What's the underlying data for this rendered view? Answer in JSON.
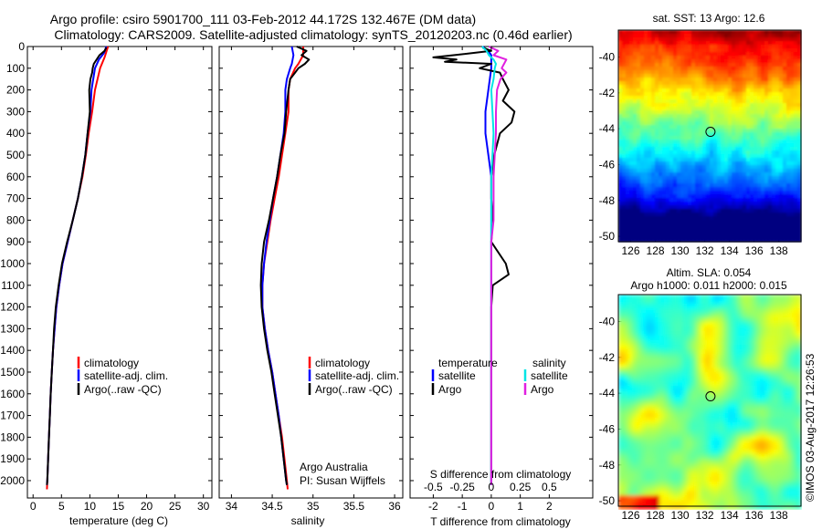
{
  "title": {
    "line1": "Argo profile: csiro 5901700_111 03-Feb-2012 44.172S 132.467E (DM data)",
    "line2": "Climatology: CARS2009. Satellite-adjusted climatology: synTS_20120203.nc (0.46d earlier)"
  },
  "colors": {
    "climatology": "#ff0000",
    "satellite": "#0000ff",
    "argo": "#000000",
    "satellite_salinity": "#00e5e5",
    "argo_salinity": "#e020e0",
    "marker": "#000000"
  },
  "chart_data": [
    {
      "type": "line",
      "panel": "temperature",
      "xlabel": "temperature (deg C)",
      "ylabel": "",
      "xlim": [
        -1,
        31.5
      ],
      "ylim": [
        2080,
        0
      ],
      "y_inverted": true,
      "xticks": [
        "0",
        "5",
        "10",
        "15",
        "20",
        "25",
        "30"
      ],
      "xtick_values": [
        0,
        5,
        10,
        15,
        20,
        25,
        30
      ],
      "yticks": [
        "0",
        "100",
        "200",
        "300",
        "400",
        "500",
        "600",
        "700",
        "800",
        "900",
        "1000",
        "1100",
        "1200",
        "1300",
        "1400",
        "1500",
        "1600",
        "1700",
        "1800",
        "1900",
        "2000"
      ],
      "ytick_values": [
        0,
        100,
        200,
        300,
        400,
        500,
        600,
        700,
        800,
        900,
        1000,
        1100,
        1200,
        1300,
        1400,
        1500,
        1600,
        1700,
        1800,
        1900,
        2000
      ],
      "legend": {
        "position": "middle",
        "entries": [
          "climatology",
          "satellite-adj. clim.",
          "Argo(..raw -QC)"
        ]
      },
      "series": [
        {
          "name": "climatology",
          "color": "#ff0000",
          "y": [
            0,
            50,
            100,
            200,
            300,
            400,
            500,
            600,
            700,
            800,
            900,
            1000,
            1100,
            1200,
            1300,
            1400,
            1500,
            1600,
            1700,
            1800,
            1900,
            2000,
            2040
          ],
          "x": [
            13.2,
            12.6,
            11.8,
            10.9,
            10.4,
            9.8,
            9.3,
            8.7,
            7.9,
            7.0,
            6.1,
            5.2,
            4.6,
            4.1,
            3.8,
            3.5,
            3.3,
            3.1,
            2.95,
            2.8,
            2.65,
            2.5,
            2.45
          ]
        },
        {
          "name": "satellite-adj. clim.",
          "color": "#0000ff",
          "y": [
            0,
            30,
            60,
            100,
            200,
            300,
            400,
            500,
            600,
            700,
            800,
            900,
            1000,
            1100,
            1200,
            1300,
            1400,
            1500,
            1600,
            1700,
            1800,
            1900,
            2000,
            2020
          ],
          "x": [
            12.9,
            12.5,
            11.6,
            10.9,
            10.3,
            10.1,
            9.6,
            9.2,
            8.6,
            7.9,
            7.0,
            6.1,
            5.2,
            4.6,
            4.1,
            3.8,
            3.5,
            3.3,
            3.1,
            2.95,
            2.8,
            2.65,
            2.5,
            2.45
          ]
        },
        {
          "name": "Argo(..raw -QC)",
          "color": "#000000",
          "y": [
            5,
            20,
            40,
            60,
            80,
            100,
            120,
            150,
            200,
            300,
            400,
            500,
            600,
            700,
            800,
            900,
            1000,
            1100,
            1200,
            1300,
            1400,
            1500,
            1600,
            1700,
            1800,
            1900,
            2000,
            2020
          ],
          "x": [
            12.9,
            12.6,
            11.7,
            11.2,
            10.7,
            10.5,
            10.4,
            10.1,
            9.9,
            10.0,
            9.6,
            9.2,
            8.6,
            7.9,
            7.0,
            6.0,
            5.1,
            4.5,
            4.0,
            3.7,
            3.5,
            3.3,
            3.1,
            2.95,
            2.8,
            2.65,
            2.5,
            2.45
          ]
        }
      ]
    },
    {
      "type": "line",
      "panel": "salinity",
      "xlabel": "salinity",
      "ylabel": "",
      "xlim": [
        33.85,
        36.1
      ],
      "ylim": [
        2080,
        0
      ],
      "y_inverted": true,
      "xticks": [
        "34",
        "34.5",
        "35",
        "35.5",
        "36"
      ],
      "xtick_values": [
        34,
        34.5,
        35,
        35.5,
        36
      ],
      "legend": {
        "position": "middle",
        "entries": [
          "climatology",
          "satellite-adj. clim.",
          "Argo(..raw -QC)"
        ]
      },
      "annotation": [
        "Argo Australia",
        "PI: Susan Wijffels"
      ],
      "series": [
        {
          "name": "climatology",
          "color": "#ff0000",
          "y": [
            0,
            40,
            80,
            100,
            150,
            200,
            300,
            400,
            500,
            600,
            700,
            800,
            900,
            1000,
            1100,
            1200,
            1300,
            1400,
            1500,
            1600,
            1700,
            1800,
            1900,
            2000,
            2040
          ],
          "x": [
            34.88,
            34.88,
            34.82,
            34.78,
            34.72,
            34.7,
            34.7,
            34.66,
            34.62,
            34.58,
            34.53,
            34.48,
            34.44,
            34.4,
            34.38,
            34.38,
            34.41,
            34.45,
            34.5,
            34.54,
            34.58,
            34.62,
            34.65,
            34.68,
            34.69
          ]
        },
        {
          "name": "satellite-adj. clim.",
          "color": "#0000ff",
          "y": [
            0,
            40,
            80,
            100,
            150,
            200,
            300,
            400,
            500,
            600,
            700,
            800,
            900,
            1000,
            1100,
            1200,
            1300,
            1400,
            1500,
            1600,
            1700,
            1800,
            1900,
            2000,
            2020
          ],
          "x": [
            34.74,
            34.76,
            34.74,
            34.72,
            34.68,
            34.66,
            34.66,
            34.64,
            34.6,
            34.56,
            34.51,
            34.47,
            34.43,
            34.4,
            34.38,
            34.38,
            34.41,
            34.45,
            34.5,
            34.54,
            34.58,
            34.61,
            34.64,
            34.67,
            34.68
          ]
        },
        {
          "name": "Argo(..raw -QC)",
          "color": "#000000",
          "y": [
            0,
            20,
            40,
            60,
            80,
            100,
            120,
            150,
            200,
            300,
            400,
            500,
            600,
            700,
            800,
            900,
            1000,
            1100,
            1200,
            1300,
            1400,
            1500,
            1600,
            1700,
            1800,
            1900,
            2000,
            2020
          ],
          "x": [
            34.8,
            34.92,
            34.86,
            34.95,
            34.9,
            34.82,
            34.78,
            34.72,
            34.7,
            34.67,
            34.65,
            34.6,
            34.56,
            34.51,
            34.46,
            34.4,
            34.37,
            34.36,
            34.37,
            34.4,
            34.44,
            34.49,
            34.53,
            34.57,
            34.61,
            34.64,
            34.67,
            34.68
          ]
        }
      ]
    },
    {
      "type": "line",
      "panel": "difference",
      "xlabel": "T difference from climatology",
      "xlabel_top": "S difference from climatology",
      "ylabel": "",
      "xlim": [
        -2.8,
        3.5
      ],
      "ylim": [
        2080,
        0
      ],
      "y_inverted": true,
      "xticks": [
        "-2",
        "-1",
        "0",
        "1",
        "2"
      ],
      "xtick_values": [
        -2,
        -1,
        0,
        1,
        2
      ],
      "s_xticks": [
        "-0.5",
        "-0.25",
        "0",
        "0.25",
        "0.5"
      ],
      "s_xtick_values": [
        -0.5,
        -0.25,
        0,
        0.25,
        0.5
      ],
      "legend": {
        "position": "middle",
        "groups": [
          {
            "title": "temperature",
            "entries": [
              "satellite",
              "Argo"
            ]
          },
          {
            "title": "salinity",
            "entries": [
              "satellite",
              "Argo"
            ]
          }
        ]
      },
      "series": [
        {
          "name": "temperature satellite",
          "color": "#0000ff",
          "y": [
            0,
            20,
            40,
            80,
            100,
            200,
            300,
            400,
            500,
            600,
            700,
            800,
            900,
            1000,
            1100,
            1200,
            1300,
            1400,
            1500,
            1600,
            1700,
            1800,
            1900,
            2000,
            2020
          ],
          "x": [
            -0.3,
            -0.1,
            0.0,
            0.0,
            0.0,
            -0.1,
            -0.2,
            -0.2,
            -0.1,
            0.0,
            0.0,
            0.0,
            0.0,
            0.0,
            0.0,
            0.0,
            0.0,
            0.0,
            0.0,
            0.0,
            0.0,
            0.0,
            0.0,
            0.0,
            0.0
          ]
        },
        {
          "name": "temperature Argo",
          "color": "#000000",
          "y": [
            5,
            20,
            40,
            50,
            60,
            70,
            80,
            100,
            120,
            150,
            200,
            250,
            300,
            350,
            400,
            500,
            600,
            700,
            800,
            900,
            1000,
            1050,
            1100,
            1200,
            1300,
            1400,
            1500,
            1600,
            1700,
            1800,
            1900,
            2000,
            2020
          ],
          "x": [
            -0.3,
            0.0,
            -1.3,
            -2.0,
            -1.2,
            -1.6,
            0.0,
            -0.4,
            0.3,
            0.4,
            0.6,
            0.4,
            0.8,
            0.7,
            0.3,
            0.1,
            0.0,
            0.0,
            0.05,
            0.0,
            0.5,
            0.6,
            0.05,
            0.0,
            0.0,
            0.0,
            0.0,
            0.0,
            0.0,
            0.0,
            0.0,
            0.0,
            0.0
          ]
        },
        {
          "name": "salinity satellite",
          "color": "#00e5e5",
          "y": [
            0,
            20,
            40,
            60,
            80,
            100,
            150,
            200,
            300,
            400,
            500,
            600,
            700,
            800,
            900,
            1000,
            1100,
            1200,
            1300,
            1400,
            1500,
            1600,
            1700,
            1800,
            1900,
            2000,
            2020
          ],
          "x": [
            -0.08,
            -0.04,
            -0.02,
            0.02,
            0.04,
            0.03,
            0.02,
            0.0,
            0.01,
            0.02,
            0.01,
            0.0,
            0.0,
            0.0,
            0.0,
            0.0,
            0.0,
            0.0,
            0.0,
            0.0,
            0.0,
            0.0,
            0.0,
            0.0,
            0.0,
            0.0,
            0.0
          ]
        },
        {
          "name": "salinity Argo",
          "color": "#e020e0",
          "y": [
            0,
            20,
            40,
            60,
            80,
            100,
            120,
            150,
            200,
            300,
            400,
            500,
            600,
            700,
            800,
            900,
            1000,
            1100,
            1200,
            1300,
            1400,
            1500,
            1600,
            1700,
            1800,
            1900,
            2000,
            2020
          ],
          "x": [
            -0.02,
            0.06,
            0.02,
            0.13,
            0.11,
            0.09,
            0.13,
            0.08,
            0.05,
            0.04,
            0.04,
            0.03,
            0.02,
            0.02,
            0.02,
            0.0,
            0.0,
            0.0,
            0.0,
            0.0,
            0.0,
            0.0,
            0.0,
            0.0,
            0.0,
            0.0,
            0.0,
            0.0
          ]
        }
      ]
    },
    {
      "type": "heatmap",
      "panel": "sst_map",
      "title": "sat. SST: 13 Argo: 12.6",
      "xlim": [
        125,
        139.8
      ],
      "ylim": [
        -50.3,
        -38.5
      ],
      "xticks": [
        "126",
        "128",
        "130",
        "132",
        "134",
        "136",
        "138"
      ],
      "xtick_values": [
        126,
        128,
        130,
        132,
        134,
        136,
        138
      ],
      "yticks": [
        "-40",
        "-42",
        "-44",
        "-46",
        "-48",
        "-50"
      ],
      "ytick_values": [
        -40,
        -42,
        -44,
        -46,
        -48,
        -50
      ],
      "profile_location": {
        "lon": 132.467,
        "lat": -44.172
      },
      "colormap": "jet, warm in north, cold in south"
    },
    {
      "type": "heatmap",
      "panel": "sla_map",
      "title": [
        "Altim. SLA: 0.054",
        "Argo h1000: 0.011 h2000: 0.015"
      ],
      "xlim": [
        125,
        139.8
      ],
      "ylim": [
        -50.3,
        -38.5
      ],
      "xticks": [
        "126",
        "128",
        "130",
        "132",
        "134",
        "136",
        "138"
      ],
      "xtick_values": [
        126,
        128,
        130,
        132,
        134,
        136,
        138
      ],
      "yticks": [
        "-40",
        "-42",
        "-44",
        "-46",
        "-48",
        "-50"
      ],
      "ytick_values": [
        -40,
        -42,
        -44,
        -46,
        -48,
        -50
      ],
      "profile_location": {
        "lon": 132.467,
        "lat": -44.172
      },
      "colormap": "jet, mostly green with yellow and cyan patches"
    }
  ],
  "legend_text": {
    "climatology": "climatology",
    "satellite_adj": "satellite-adj. clim.",
    "argo_raw": "Argo(..raw -QC)",
    "temperature": "temperature",
    "salinity": "salinity",
    "satellite": "satellite",
    "argo": "Argo"
  },
  "credit": "©IMOS 03-Aug-2017 12:26:53"
}
